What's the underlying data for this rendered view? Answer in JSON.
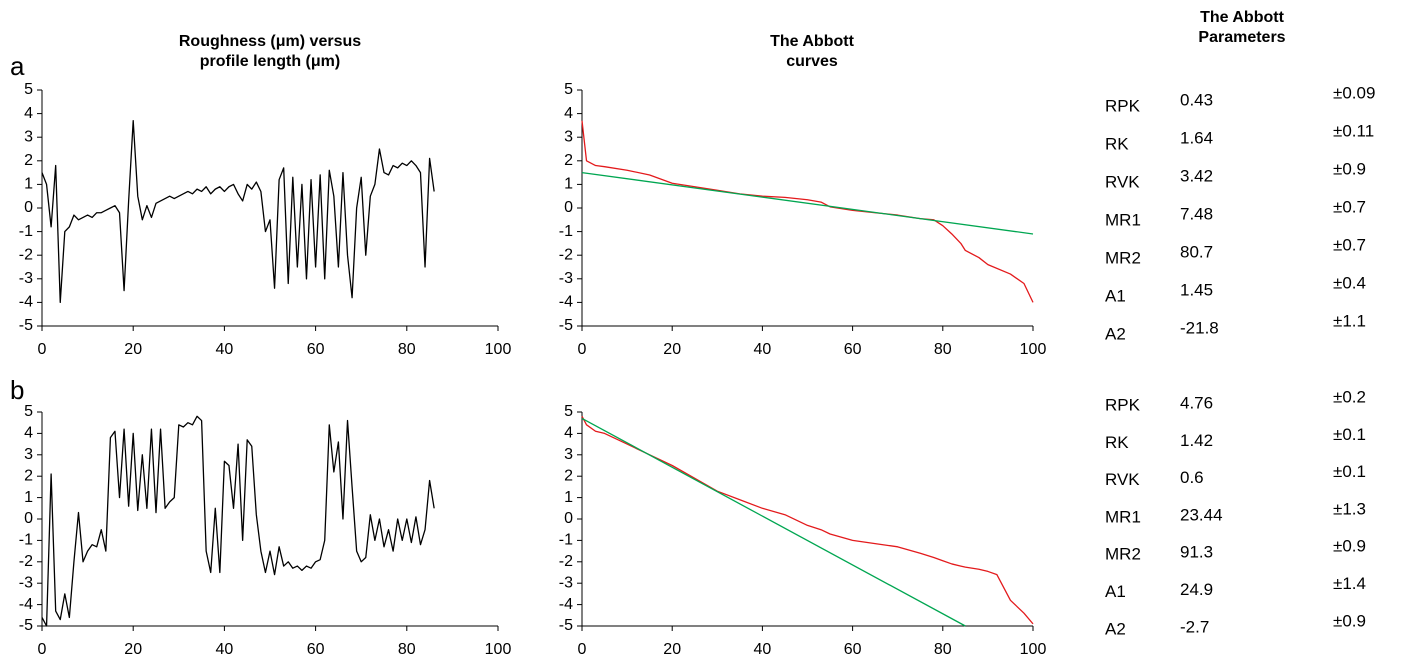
{
  "panels": [
    "a",
    "b"
  ],
  "chart_data": [
    {
      "type": "line",
      "title": "Roughness (μm) versus profile length (μm)",
      "xlim": [
        0,
        100
      ],
      "ylim": [
        -5,
        5
      ],
      "xticks": [
        0,
        20,
        40,
        60,
        80,
        100
      ],
      "yticks": [
        -5,
        -4,
        -3,
        -2,
        -1,
        0,
        1,
        2,
        3,
        4,
        5
      ],
      "x": [
        0,
        1,
        2,
        3,
        4,
        5,
        6,
        7,
        8,
        9,
        10,
        11,
        12,
        13,
        14,
        15,
        16,
        17,
        18,
        19,
        20,
        21,
        22,
        23,
        24,
        25,
        26,
        27,
        28,
        29,
        30,
        31,
        32,
        33,
        34,
        35,
        36,
        37,
        38,
        39,
        40,
        41,
        42,
        43,
        44,
        45,
        46,
        47,
        48,
        49,
        50,
        51,
        52,
        53,
        54,
        55,
        56,
        57,
        58,
        59,
        60,
        61,
        62,
        63,
        64,
        65,
        66,
        67,
        68,
        69,
        70,
        71,
        72,
        73,
        74,
        75,
        76,
        77,
        78,
        79,
        80,
        81,
        82,
        83,
        84,
        85,
        86
      ],
      "series": [
        {
          "color": "#000000",
          "values": [
            1.5,
            1.0,
            -0.8,
            1.8,
            -4.0,
            -1.0,
            -0.8,
            -0.3,
            -0.5,
            -0.4,
            -0.3,
            -0.4,
            -0.2,
            -0.2,
            -0.1,
            0.0,
            0.1,
            -0.2,
            -3.5,
            0.3,
            3.7,
            0.5,
            -0.5,
            0.1,
            -0.4,
            0.2,
            0.3,
            0.4,
            0.5,
            0.4,
            0.5,
            0.6,
            0.7,
            0.6,
            0.8,
            0.7,
            0.9,
            0.6,
            0.8,
            0.9,
            0.7,
            0.9,
            1.0,
            0.6,
            0.3,
            1.0,
            0.8,
            1.1,
            0.7,
            -1.0,
            -0.5,
            -3.4,
            1.2,
            1.7,
            -3.2,
            1.3,
            -2.5,
            1.0,
            -3.0,
            1.2,
            -2.5,
            1.4,
            -3.0,
            1.6,
            0.5,
            -2.5,
            1.5,
            -2.0,
            -3.8,
            0.0,
            1.3,
            -2.0,
            0.5,
            1.0,
            2.5,
            1.5,
            1.4,
            1.8,
            1.7,
            1.9,
            1.8,
            2.0,
            1.8,
            1.5,
            -2.5,
            2.1,
            0.7
          ]
        }
      ]
    },
    {
      "type": "line",
      "title": "The Abbott curves",
      "xlim": [
        0,
        100
      ],
      "ylim": [
        -5,
        5
      ],
      "xticks": [
        0,
        20,
        40,
        60,
        80,
        100
      ],
      "yticks": [
        -5,
        -4,
        -3,
        -2,
        -1,
        0,
        1,
        2,
        3,
        4,
        5
      ],
      "series": [
        {
          "color": "#e31a1c",
          "x": [
            0,
            1,
            3,
            5,
            10,
            15,
            20,
            25,
            30,
            35,
            40,
            45,
            50,
            53,
            55,
            60,
            65,
            70,
            75,
            78,
            80,
            82,
            84,
            85,
            88,
            90,
            95,
            98,
            100
          ],
          "values": [
            3.7,
            2.0,
            1.8,
            1.75,
            1.6,
            1.4,
            1.05,
            0.9,
            0.75,
            0.6,
            0.5,
            0.45,
            0.35,
            0.25,
            0.05,
            -0.1,
            -0.2,
            -0.3,
            -0.45,
            -0.5,
            -0.75,
            -1.1,
            -1.5,
            -1.8,
            -2.1,
            -2.4,
            -2.8,
            -3.2,
            -4.0
          ]
        },
        {
          "color": "#00a651",
          "x": [
            0,
            100
          ],
          "values": [
            1.5,
            -1.1
          ]
        }
      ]
    },
    {
      "type": "line",
      "xlim": [
        0,
        100
      ],
      "ylim": [
        -5,
        5
      ],
      "xticks": [
        0,
        20,
        40,
        60,
        80,
        100
      ],
      "yticks": [
        -5,
        -4,
        -3,
        -2,
        -1,
        0,
        1,
        2,
        3,
        4,
        5
      ],
      "x": [
        0,
        1,
        2,
        3,
        4,
        5,
        6,
        7,
        8,
        9,
        10,
        11,
        12,
        13,
        14,
        15,
        16,
        17,
        18,
        19,
        20,
        21,
        22,
        23,
        24,
        25,
        26,
        27,
        28,
        29,
        30,
        31,
        32,
        33,
        34,
        35,
        36,
        37,
        38,
        39,
        40,
        41,
        42,
        43,
        44,
        45,
        46,
        47,
        48,
        49,
        50,
        51,
        52,
        53,
        54,
        55,
        56,
        57,
        58,
        59,
        60,
        61,
        62,
        63,
        64,
        65,
        66,
        67,
        68,
        69,
        70,
        71,
        72,
        73,
        74,
        75,
        76,
        77,
        78,
        79,
        80,
        81,
        82,
        83,
        84,
        85,
        86
      ],
      "series": [
        {
          "color": "#000000",
          "values": [
            -4.6,
            -5.0,
            2.1,
            -4.3,
            -4.7,
            -3.5,
            -4.6,
            -2.0,
            0.3,
            -2.0,
            -1.5,
            -1.2,
            -1.3,
            -0.5,
            -1.5,
            3.8,
            4.1,
            1.0,
            4.2,
            0.6,
            4.0,
            0.4,
            3.0,
            0.5,
            4.2,
            0.3,
            4.2,
            0.5,
            0.8,
            1.0,
            4.4,
            4.3,
            4.5,
            4.4,
            4.8,
            4.6,
            -1.5,
            -2.5,
            0.5,
            -2.5,
            2.7,
            2.5,
            0.5,
            3.5,
            -1.0,
            3.7,
            3.4,
            0.2,
            -1.5,
            -2.5,
            -1.5,
            -2.6,
            -1.3,
            -2.2,
            -2.0,
            -2.3,
            -2.2,
            -2.4,
            -2.2,
            -2.3,
            -2.0,
            -1.9,
            -1.0,
            4.4,
            2.2,
            3.6,
            0.0,
            4.6,
            1.5,
            -1.5,
            -2.0,
            -1.8,
            0.2,
            -1.0,
            0.0,
            -1.3,
            -0.5,
            -1.5,
            0.0,
            -1.0,
            0.0,
            -1.1,
            0.1,
            -1.2,
            -0.5,
            1.8,
            0.5
          ]
        }
      ]
    },
    {
      "type": "line",
      "xlim": [
        0,
        100
      ],
      "ylim": [
        -5,
        5
      ],
      "xticks": [
        0,
        20,
        40,
        60,
        80,
        100
      ],
      "yticks": [
        -5,
        -4,
        -3,
        -2,
        -1,
        0,
        1,
        2,
        3,
        4,
        5
      ],
      "series": [
        {
          "color": "#e31a1c",
          "x": [
            0,
            1,
            3,
            5,
            10,
            15,
            20,
            25,
            30,
            35,
            40,
            45,
            50,
            53,
            55,
            60,
            65,
            70,
            75,
            78,
            80,
            82,
            84,
            85,
            88,
            90,
            92,
            95,
            98,
            100
          ],
          "values": [
            4.8,
            4.4,
            4.1,
            4.0,
            3.5,
            3.0,
            2.5,
            1.9,
            1.3,
            0.9,
            0.5,
            0.2,
            -0.3,
            -0.5,
            -0.7,
            -1.0,
            -1.15,
            -1.3,
            -1.6,
            -1.8,
            -1.95,
            -2.1,
            -2.2,
            -2.25,
            -2.35,
            -2.45,
            -2.6,
            -3.8,
            -4.4,
            -4.9
          ]
        },
        {
          "color": "#00a651",
          "x": [
            0,
            85
          ],
          "values": [
            4.7,
            -5
          ]
        }
      ]
    }
  ],
  "parameters": {
    "title": "The Abbott Parameters",
    "tables": [
      {
        "rows": [
          {
            "name": "RPK",
            "value": "0.43",
            "error": "±0.09"
          },
          {
            "name": "RK",
            "value": "1.64",
            "error": "±0.11"
          },
          {
            "name": "RVK",
            "value": "3.42",
            "error": "±0.9"
          },
          {
            "name": "MR1",
            "value": "7.48",
            "error": "±0.7"
          },
          {
            "name": "MR2",
            "value": "80.7",
            "error": "±0.7"
          },
          {
            "name": "A1",
            "value": "1.45",
            "error": "±0.4"
          },
          {
            "name": "A2",
            "value": "-21.8",
            "error": "±1.1"
          }
        ]
      },
      {
        "rows": [
          {
            "name": "RPK",
            "value": "4.76",
            "error": "±0.2"
          },
          {
            "name": "RK",
            "value": "1.42",
            "error": "±0.1"
          },
          {
            "name": "RVK",
            "value": "0.6",
            "error": "±0.1"
          },
          {
            "name": "MR1",
            "value": "23.44",
            "error": "±1.3"
          },
          {
            "name": "MR2",
            "value": "91.3",
            "error": "±0.9"
          },
          {
            "name": "A1",
            "value": "24.9",
            "error": "±1.4"
          },
          {
            "name": "A2",
            "value": "-2.7",
            "error": "±0.9"
          }
        ]
      }
    ]
  }
}
